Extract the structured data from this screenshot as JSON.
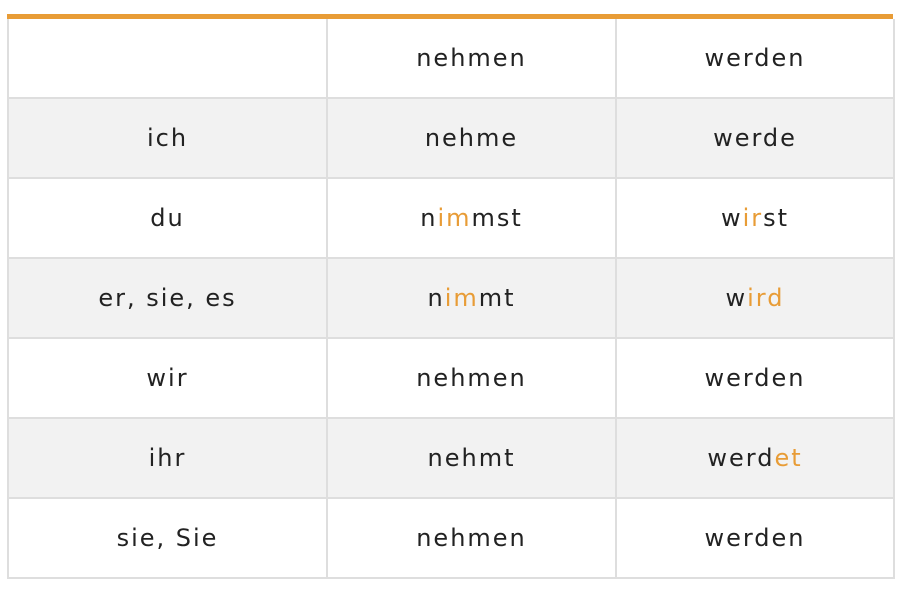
{
  "colors": {
    "accent": "#e89c36",
    "stripe": "#f2f2f2",
    "border": "#dedede",
    "text": "#222222"
  },
  "header": [
    "",
    "nehmen",
    "werden"
  ],
  "rows": [
    {
      "pronoun": "ich",
      "nehmen": [
        {
          "t": "nehme",
          "hl": false
        }
      ],
      "werden": [
        {
          "t": "werde",
          "hl": false
        }
      ]
    },
    {
      "pronoun": "du",
      "nehmen": [
        {
          "t": "n",
          "hl": false
        },
        {
          "t": "im",
          "hl": true
        },
        {
          "t": "mst",
          "hl": false
        }
      ],
      "werden": [
        {
          "t": "w",
          "hl": false
        },
        {
          "t": "ir",
          "hl": true
        },
        {
          "t": "st",
          "hl": false
        }
      ]
    },
    {
      "pronoun": "er, sie, es",
      "nehmen": [
        {
          "t": "n",
          "hl": false
        },
        {
          "t": "im",
          "hl": true
        },
        {
          "t": "mt",
          "hl": false
        }
      ],
      "werden": [
        {
          "t": "w",
          "hl": false
        },
        {
          "t": "ird",
          "hl": true
        }
      ]
    },
    {
      "pronoun": "wir",
      "nehmen": [
        {
          "t": "nehmen",
          "hl": false
        }
      ],
      "werden": [
        {
          "t": "werden",
          "hl": false
        }
      ]
    },
    {
      "pronoun": "ihr",
      "nehmen": [
        {
          "t": "nehmt",
          "hl": false
        }
      ],
      "werden": [
        {
          "t": "werd",
          "hl": false
        },
        {
          "t": "et",
          "hl": true
        }
      ]
    },
    {
      "pronoun": "sie, Sie",
      "nehmen": [
        {
          "t": "nehmen",
          "hl": false
        }
      ],
      "werden": [
        {
          "t": "werden",
          "hl": false
        }
      ]
    }
  ]
}
